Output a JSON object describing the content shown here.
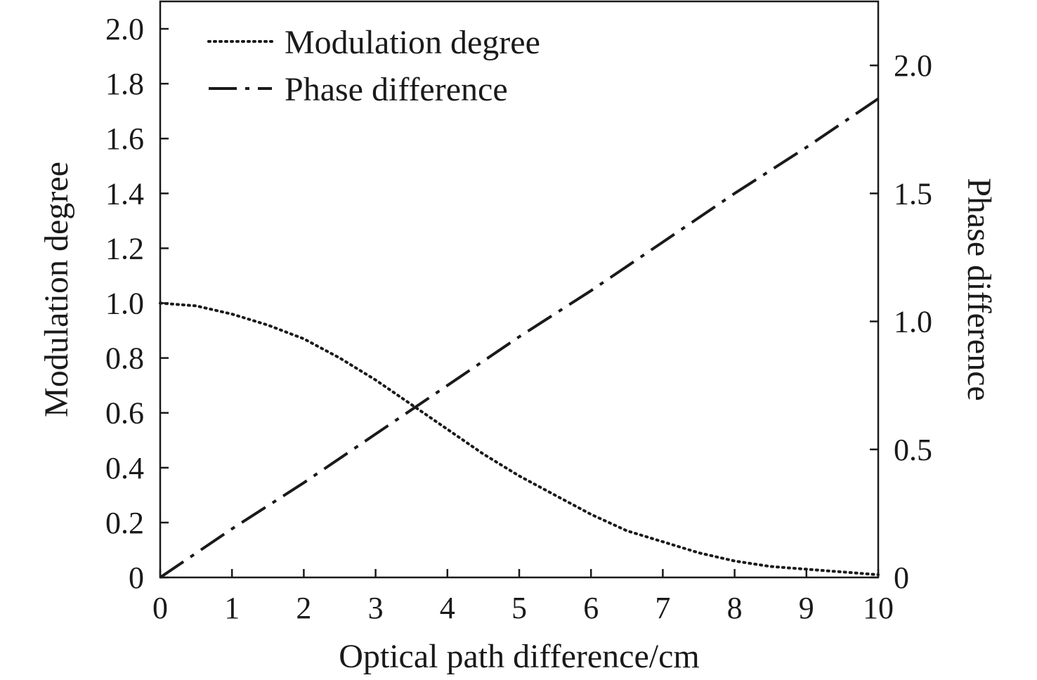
{
  "chart_data": {
    "type": "line",
    "title": "",
    "xlabel": "Optical path difference/cm",
    "ylabel_left": "Modulation degree",
    "ylabel_right": "Phase difference",
    "xlim": [
      0,
      10
    ],
    "ylim_left": [
      0,
      2.1
    ],
    "ylim_right": [
      0,
      2.25
    ],
    "x_ticks": [
      0,
      1,
      2,
      3,
      4,
      5,
      6,
      7,
      8,
      9,
      10
    ],
    "x_tick_labels": [
      "0",
      "1",
      "2",
      "3",
      "4",
      "5",
      "6",
      "7",
      "8",
      "9",
      "10"
    ],
    "y_left_ticks": [
      0,
      0.2,
      0.4,
      0.6,
      0.8,
      1.0,
      1.2,
      1.4,
      1.6,
      1.8,
      2.0
    ],
    "y_left_tick_labels": [
      "0",
      "0.2",
      "0.4",
      "0.6",
      "0.8",
      "1.0",
      "1.2",
      "1.4",
      "1.6",
      "1.8",
      "2.0"
    ],
    "y_right_ticks": [
      0,
      0.5,
      1.0,
      1.5,
      2.0
    ],
    "y_right_tick_labels": [
      "0",
      "0.5",
      "1.0",
      "1.5",
      "2.0"
    ],
    "grid": false,
    "legend_position": "top-left",
    "series": [
      {
        "name": "Modulation degree",
        "axis": "left",
        "style": "dotted",
        "color": "#1a1a1a",
        "x": [
          0,
          0.5,
          1,
          1.5,
          2,
          2.5,
          3,
          3.5,
          4,
          4.5,
          5,
          5.5,
          6,
          6.5,
          7,
          7.5,
          8,
          8.5,
          9,
          9.5,
          10
        ],
        "values": [
          1.0,
          0.99,
          0.96,
          0.92,
          0.87,
          0.8,
          0.72,
          0.63,
          0.54,
          0.45,
          0.37,
          0.3,
          0.23,
          0.17,
          0.13,
          0.09,
          0.06,
          0.04,
          0.03,
          0.02,
          0.01
        ]
      },
      {
        "name": "Phase difference",
        "axis": "right",
        "style": "dash-dot",
        "color": "#1a1a1a",
        "x": [
          0,
          1,
          2,
          3,
          4,
          5,
          6,
          7,
          8,
          9,
          10
        ],
        "values": [
          0.0,
          0.19,
          0.37,
          0.56,
          0.75,
          0.94,
          1.12,
          1.31,
          1.5,
          1.68,
          1.87
        ]
      }
    ]
  }
}
